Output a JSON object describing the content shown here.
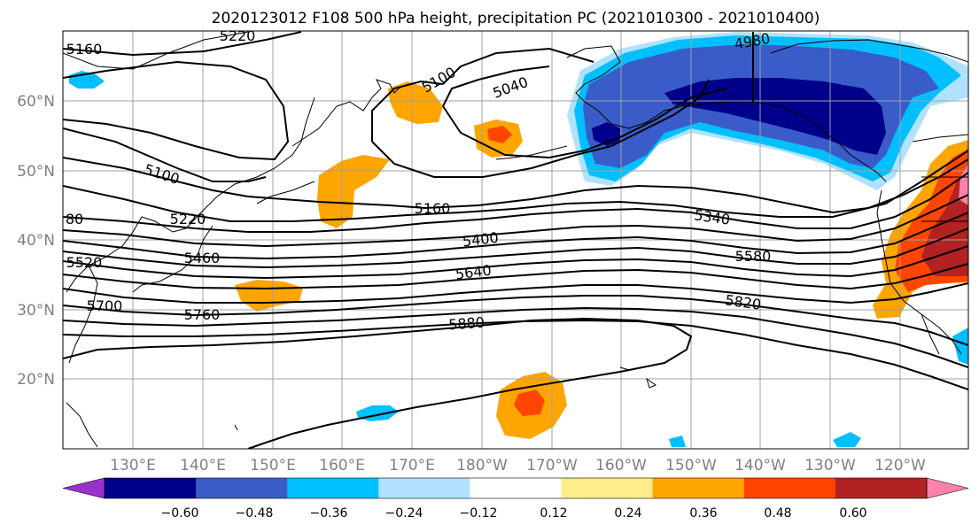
{
  "title": "2020123012 F108 500 hPa height, precipitation PC (2021010300 - 2021010400)",
  "map": {
    "lon_ticks": [
      "130°E",
      "140°E",
      "150°E",
      "160°E",
      "170°E",
      "180°W",
      "170°W",
      "160°W",
      "150°W",
      "140°W",
      "130°W",
      "120°W"
    ],
    "lat_ticks": [
      "60°N",
      "50°N",
      "40°N",
      "30°N",
      "20°N"
    ],
    "contour_labels": [
      "5220",
      "5160",
      "5100",
      "5040",
      "4980",
      "5100",
      "5160",
      "5220",
      "5340",
      "5400",
      "5460",
      "5520",
      "5580",
      "5640",
      "5700",
      "5760",
      "5820",
      "5880",
      "80"
    ],
    "colors": {
      "lt_neg2": "#9932CC",
      "lt_neg1": "#00008B",
      "neg2": "#3A5CC9",
      "neg3": "#00BFFF",
      "neg4": "#B0E2FF",
      "neutral": "#FFFFFF",
      "pos1": "#FFEC8B",
      "pos2": "#FFA500",
      "pos3": "#FF4500",
      "pos4": "#B22222",
      "pos5": "#FF82AB"
    }
  },
  "colorbar": {
    "ticks": [
      "−0.60",
      "−0.48",
      "−0.36",
      "−0.24",
      "−0.12",
      "0.12",
      "0.24",
      "0.36",
      "0.48",
      "0.60"
    ],
    "colors": [
      "#9932CC",
      "#00008B",
      "#3A5CC9",
      "#00BFFF",
      "#B0E2FF",
      "#FFFFFF",
      "#FFEC8B",
      "#FFA500",
      "#FF4500",
      "#B22222",
      "#FF82AB"
    ]
  }
}
